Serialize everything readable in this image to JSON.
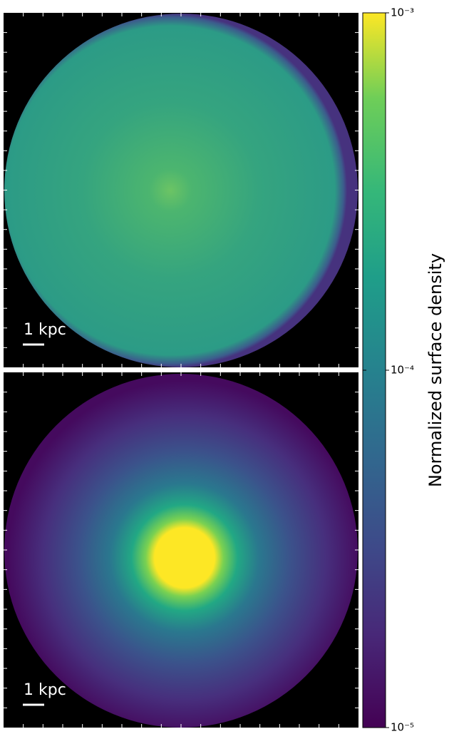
{
  "chart_data": {
    "type": "image",
    "panels": [
      {
        "scale_bar": "1 kpc"
      },
      {
        "scale_bar": "1 kpc"
      }
    ],
    "colorbar": {
      "label": "Normalized surface density",
      "log_scale": true,
      "colormap": "viridis",
      "ylim": [
        1e-05,
        0.001
      ],
      "yticks": [
        {
          "value": 1e-05,
          "label": "10⁻⁵"
        },
        {
          "value": 0.0001,
          "label": "10⁻⁴"
        },
        {
          "value": 0.001,
          "label": "10⁻³"
        }
      ]
    }
  }
}
